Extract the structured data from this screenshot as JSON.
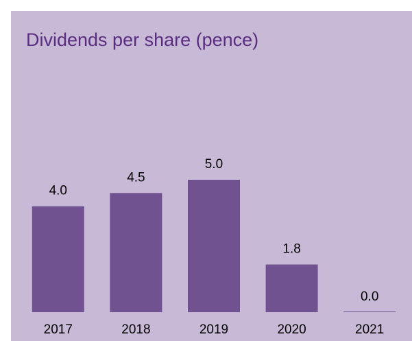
{
  "chart_data": {
    "type": "bar",
    "title": "Dividends per share (pence)",
    "categories": [
      "2017",
      "2018",
      "2019",
      "2020",
      "2021"
    ],
    "values": [
      4.0,
      4.5,
      5.0,
      1.8,
      0.0
    ],
    "value_labels": [
      "4.0",
      "4.5",
      "5.0",
      "1.8",
      "0.0"
    ],
    "color": "#6f528f",
    "ylim": [
      0,
      6
    ]
  }
}
